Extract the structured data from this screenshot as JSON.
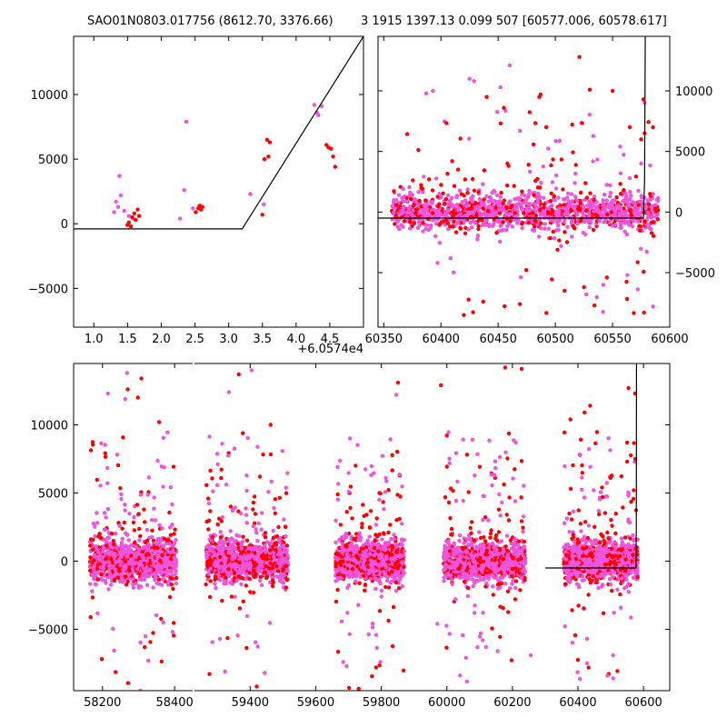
{
  "header": {
    "left_title": "SAO01N0803.017756 (8612.70, 3376.66)",
    "right_title": "3 1915 1397.13 0.099 507 [60577.006, 60578.617]"
  },
  "colors": {
    "series_a": "#ff0000",
    "series_b": "#ee55dd",
    "model": "#000000"
  },
  "chart_data": [
    {
      "type": "scatter",
      "xlim": [
        0.7,
        5.0
      ],
      "ylim": [
        -8000,
        14500
      ],
      "x_offset_label": "+6.0574e4",
      "xticks": [
        1.0,
        1.5,
        2.0,
        2.5,
        3.0,
        3.5,
        4.0,
        4.5
      ],
      "xtick_labels": [
        "1.0",
        "1.5",
        "2.0",
        "2.5",
        "3.0",
        "3.5",
        "4.0",
        "4.5"
      ],
      "yticks": [
        -5000,
        0,
        5000,
        10000
      ],
      "ytick_labels": [
        "−5000",
        "0",
        "5000",
        "10000"
      ],
      "ytick_side": "left",
      "series": [
        {
          "color": "#ee55dd",
          "x": [
            1.3,
            1.33,
            1.36,
            1.38,
            1.4,
            1.45,
            1.52,
            1.58,
            2.28,
            2.34,
            2.37,
            2.47,
            3.32,
            3.52,
            4.27,
            4.31,
            4.33,
            4.38
          ],
          "y": [
            900,
            1700,
            1300,
            3700,
            2200,
            1000,
            600,
            400,
            400,
            2600,
            7900,
            1200,
            2300,
            1500,
            9200,
            8600,
            8400,
            9100
          ]
        },
        {
          "color": "#ff0000",
          "x": [
            1.5,
            1.52,
            1.55,
            1.57,
            1.6,
            1.62,
            1.65,
            1.67,
            2.51,
            2.55,
            2.57,
            2.59,
            2.61,
            3.5,
            3.53,
            3.57,
            3.59,
            3.61,
            4.45,
            4.48,
            4.52,
            4.55,
            4.58
          ],
          "y": [
            -100,
            100,
            -200,
            500,
            800,
            300,
            1100,
            600,
            900,
            1200,
            1400,
            1100,
            1300,
            700,
            5000,
            6500,
            5200,
            6300,
            6100,
            5900,
            5800,
            5200,
            4400
          ]
        }
      ],
      "model_line": {
        "color": "#000000",
        "x": [
          0.7,
          3.2,
          5.0
        ],
        "y": [
          -400,
          -400,
          14500
        ]
      }
    },
    {
      "type": "scatter",
      "xlim": [
        60345,
        60600
      ],
      "ylim": [
        -9500,
        14500
      ],
      "xticks": [
        60350,
        60400,
        60450,
        60500,
        60550,
        60600
      ],
      "xtick_labels": [
        "60350",
        "60400",
        "60450",
        "60500",
        "60550",
        "60600"
      ],
      "yticks": [
        -5000,
        0,
        5000,
        10000
      ],
      "ytick_labels": [
        "−5000",
        "0",
        "5000",
        "10000"
      ],
      "ytick_side": "right",
      "series": [
        {
          "color": "#ee55dd",
          "x": [
            60387,
            60393,
            60397,
            60425,
            60429,
            60452,
            60460,
            60505,
            60527,
            60542,
            60557,
            60563,
            60565,
            60575,
            60578
          ],
          "y": [
            9800,
            10000,
            -4200,
            11000,
            10800,
            10300,
            12100,
            -2800,
            -6800,
            -6000,
            3200,
            -5200,
            2800,
            4000,
            9000
          ]
        },
        {
          "color": "#ff0000",
          "x": [
            60420,
            60437,
            60440,
            60455,
            60469,
            60486,
            60487,
            60508,
            60521,
            60525,
            60530,
            60545,
            60550,
            60565,
            60575,
            60577,
            60578
          ],
          "y": [
            -8500,
            -7400,
            9500,
            8600,
            -7600,
            9500,
            9700,
            -6500,
            12800,
            -6200,
            10100,
            -5400,
            10000,
            7000,
            6000,
            9300,
            6500
          ]
        }
      ],
      "baseline": {
        "x_start": 60347,
        "x_end": 60593,
        "y": -500
      },
      "cloud": {
        "x_start": 60357,
        "x_end": 60590,
        "sd": 700,
        "count": 1300,
        "outliers": 130
      },
      "model_line": {
        "color": "#000000",
        "x": [
          60345,
          60577,
          60578,
          60578.6
        ],
        "y": [
          -500,
          -500,
          2600,
          14500
        ]
      }
    },
    {
      "type": "scatter",
      "broken_x_axis": true,
      "ylim": [
        -9500,
        14500
      ],
      "xticks": [
        58200,
        58400,
        59400,
        59600,
        59800,
        60000,
        60200,
        60400,
        60600
      ],
      "xtick_labels": [
        "58200",
        "58400",
        "59400",
        "59600",
        "59800",
        "60000",
        "60200",
        "60400",
        "60600"
      ],
      "yticks": [
        -5000,
        0,
        5000,
        10000
      ],
      "ytick_labels": [
        "−5000",
        "0",
        "5000",
        "10000"
      ],
      "segments": [
        {
          "xlim": [
            58120,
            58450
          ]
        },
        {
          "xlim": [
            59230,
            60680
          ]
        }
      ],
      "season_ranges": [
        [
          58165,
          58405
        ],
        [
          59265,
          59515
        ],
        [
          59660,
          59870
        ],
        [
          59990,
          60240
        ],
        [
          60357,
          60583
        ]
      ],
      "series": [
        {
          "color": "#ee55dd",
          "x": [
            58215,
            58263,
            58268,
            58305,
            58327,
            59335,
            59404,
            59444,
            59694,
            59797,
            59846,
            59971,
            60018,
            60103,
            60119,
            60155,
            60256,
            60428,
            60490,
            60507
          ],
          "y": [
            12300,
            11900,
            13800,
            -9500,
            -7300,
            12400,
            14000,
            -8200,
            -7700,
            -7400,
            12200,
            -4600,
            -9600,
            -5300,
            -6300,
            -6600,
            -6900,
            -5700,
            -8400,
            -6900
          ]
        },
        {
          "color": "#ff0000",
          "x": [
            58270,
            58298,
            58308,
            58357,
            59365,
            59462,
            59702,
            59784,
            59851,
            59982,
            60178,
            60228,
            60377,
            60420,
            60437,
            60554,
            60574
          ],
          "y": [
            12600,
            12000,
            13400,
            10200,
            13700,
            10000,
            -9300,
            -7800,
            13100,
            12900,
            14200,
            14100,
            10400,
            10900,
            11400,
            12700,
            12300
          ]
        }
      ],
      "cloud": {
        "sd": 700,
        "count_per_season": 1100,
        "outliers_per_season": 110
      },
      "model_line": {
        "color": "#000000",
        "x": [
          60300,
          60577,
          60578,
          60578.6
        ],
        "y": [
          -500,
          -500,
          2600,
          14500
        ]
      }
    }
  ]
}
